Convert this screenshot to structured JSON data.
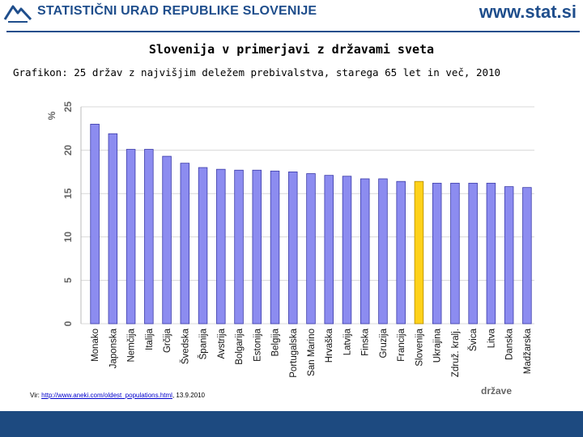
{
  "header": {
    "org_name": "STATISTIČNI URAD REPUBLIKE SLOVENIJE",
    "site_url": "www.stat.si",
    "logo_icon": "sursi-logo-icon",
    "brand_color": "#1f4e8c"
  },
  "slide": {
    "title": "Slovenija v primerjavi z državami sveta",
    "subtitle": "Grafikon: 25 držav z najvišjim deležem prebivalstva, starega 65 let in več, 2010"
  },
  "source": {
    "prefix": "Vir: ",
    "link_text": "http://www.aneki.com/oldest_populations.html",
    "suffix": ", 13.9.2010"
  },
  "chart_data": {
    "type": "bar",
    "title": "",
    "xlabel": "države",
    "ylabel": "%",
    "ylim": [
      0,
      25
    ],
    "yticks": [
      0,
      5,
      10,
      15,
      20,
      25
    ],
    "grid": true,
    "categories": [
      "Monako",
      "Japonska",
      "Nemčija",
      "Italija",
      "Grčija",
      "Švedska",
      "Španija",
      "Avstrija",
      "Bolgarija",
      "Estonija",
      "Belgija",
      "Portugalska",
      "San Marino",
      "Hrvaška",
      "Latvija",
      "Finska",
      "Gruzija",
      "Francija",
      "Slovenija",
      "Ukrajina",
      "Združ. kralj.",
      "Švica",
      "Litva",
      "Danska",
      "Madžarska"
    ],
    "values": [
      23.0,
      21.9,
      20.1,
      20.1,
      19.3,
      18.5,
      18.0,
      17.8,
      17.7,
      17.7,
      17.6,
      17.5,
      17.3,
      17.1,
      17.0,
      16.7,
      16.7,
      16.4,
      16.4,
      16.2,
      16.2,
      16.2,
      16.2,
      15.8,
      15.7
    ],
    "highlight": "Slovenija",
    "colors": {
      "bar": "#8c8cf0",
      "bar_border": "#3a3aa8",
      "highlight": "#ffd21a",
      "highlight_border": "#b08800"
    }
  }
}
